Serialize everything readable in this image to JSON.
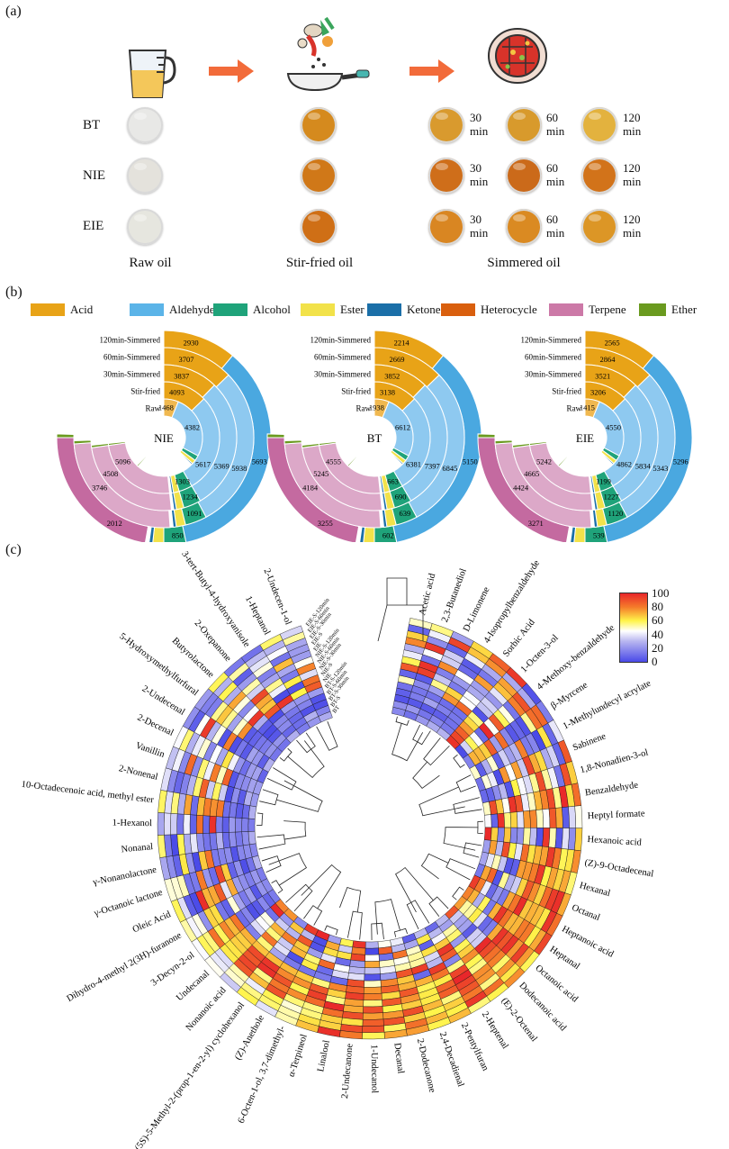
{
  "panel_labels": {
    "a": "(a)",
    "b": "(b)",
    "c": "(c)"
  },
  "panel_a": {
    "samples": [
      "BT",
      "NIE",
      "EIE"
    ],
    "stages": [
      "Raw oil",
      "Stir-fried oil",
      "Simmered oil"
    ],
    "times": [
      "30\nmin",
      "60\nmin",
      "120\nmin"
    ],
    "icons": [
      "measuring-jug-icon",
      "arrow-right-icon",
      "frying-pan-with-ingredients-icon",
      "arrow-right-icon",
      "simmering-pot-icon"
    ],
    "dish_colors": {
      "raw": [
        "#e8e8e6",
        "#e4e2dc",
        "#e6e6df"
      ],
      "stir": [
        "#d58a1e",
        "#d07818",
        "#cf6f16"
      ],
      "simmered": [
        [
          "#d99a2e",
          "#d89a2c",
          "#e3b23e"
        ],
        [
          "#cf6e1a",
          "#cb6a1a",
          "#d2731a"
        ],
        [
          "#d98622",
          "#da8a22",
          "#dc9626"
        ]
      ]
    }
  },
  "panel_b": {
    "legend": [
      {
        "label": "Acid",
        "color": "#e8a317"
      },
      {
        "label": "Aldehyde",
        "color": "#5bb4e8"
      },
      {
        "label": "Alcohol",
        "color": "#1fa37a"
      },
      {
        "label": "Ester",
        "color": "#f2e24a"
      },
      {
        "label": "Ketone",
        "color": "#1b6fa8"
      },
      {
        "label": "Heterocycle",
        "color": "#d95f0e"
      },
      {
        "label": "Terpene",
        "color": "#cc79a7"
      },
      {
        "label": "Ether",
        "color": "#6a9a1f"
      }
    ],
    "ring_labels": [
      "120min-Simmered",
      "60min-Simmered",
      "30min-Simmered",
      "Stir-fried",
      "Raw"
    ],
    "charts": [
      {
        "name": "NIE",
        "acid": [
          "2930",
          "3707",
          "3837",
          "4093",
          "1468"
        ],
        "aldehyde": [
          "5693",
          "5938",
          "5369",
          "5617",
          "4382"
        ],
        "alcohol": [
          "850",
          "1091",
          "1234",
          "1303"
        ],
        "terpene": [
          "2012",
          "3746",
          "4508",
          "5096"
        ]
      },
      {
        "name": "BT",
        "acid": [
          "2214",
          "2669",
          "3852",
          "3138",
          "1938"
        ],
        "aldehyde": [
          "5150",
          "6845",
          "7397",
          "6381",
          "6612"
        ],
        "alcohol": [
          "602",
          "639",
          "690",
          "663"
        ],
        "terpene": [
          "3255",
          "4184",
          "5245",
          "4555"
        ]
      },
      {
        "name": "EIE",
        "acid": [
          "2565",
          "2864",
          "3521",
          "3206",
          "1415"
        ],
        "aldehyde": [
          "5296",
          "5343",
          "5834",
          "4862",
          "4550"
        ],
        "alcohol": [
          "539",
          "1120",
          "1227",
          "1199"
        ],
        "terpene": [
          "3271",
          "4424",
          "4665",
          "5242"
        ]
      }
    ]
  },
  "panel_c": {
    "colorbar": {
      "ticks": [
        "100",
        "80",
        "60",
        "40",
        "20",
        "0"
      ]
    },
    "ring_labels": [
      "EIE-S-120min",
      "EIE-S-60min",
      "EIE-S-30min",
      "EIE-S",
      "EIE",
      "NIE-S-120min",
      "NIE-S-60min",
      "NIE-S-30min",
      "NIE-S",
      "NIE",
      "BT-S-120min",
      "BT-S-60min",
      "BT-S-30min",
      "BT-S",
      "BT"
    ],
    "compounds": [
      "Acetic acid",
      "2,3-Butanediol",
      "D-Limonene",
      "4-Isopropylbenzaldehyde",
      "Sorbic Acid",
      "1-Octen-3-ol",
      "4-Methoxy-benzaldehyde",
      "β-Myrcene",
      "1-Methylundecyl acrylate",
      "Sabinene",
      "1,8-Nonadien-3-ol",
      "Benzaldehyde",
      "Heptyl formate",
      "Hexanoic acid",
      "(Z)-9-Octadecenal",
      "Hexanal",
      "Octanal",
      "Heptanoic acid",
      "Heptanal",
      "Octanoic acid",
      "Dodecanoic acid",
      "(E)-2-Octenal",
      "2-Heptenal",
      "2-Pentylfuran",
      "2,4-Decadienal",
      "2-Dodecanone",
      "Decanal",
      "1-Undecanol",
      "2-Undecanone",
      "Linalool",
      "α-Terpineol",
      "6-Octen-1-ol, 3,7-dimethyl-",
      "(Z)-Anethole",
      "(5S)-5-Methyl-2-(prop-1-en-2-yl) cyclohexanol",
      "Nonanoic acid",
      "Undecanal",
      "3-Decyn-2-ol",
      "Dihydro-4-methyl 2(3H)-furanone",
      "Oleic Acid",
      "γ-Octanoic lactone",
      "γ-Nonanolactone",
      "Nonanal",
      "1-Hexanol",
      "10-Octadecenoic acid, methyl ester",
      "2-Nonenal",
      "Vanillin",
      "2-Decenal",
      "2-Undecenal",
      "5-Hydroxymethylfurfural",
      "Butyrolactone",
      "2-Oxepanone",
      "3-tert-Butyl-4-hydroxyanisole",
      "1-Heptanol",
      "2-Undecen-1-ol"
    ]
  }
}
